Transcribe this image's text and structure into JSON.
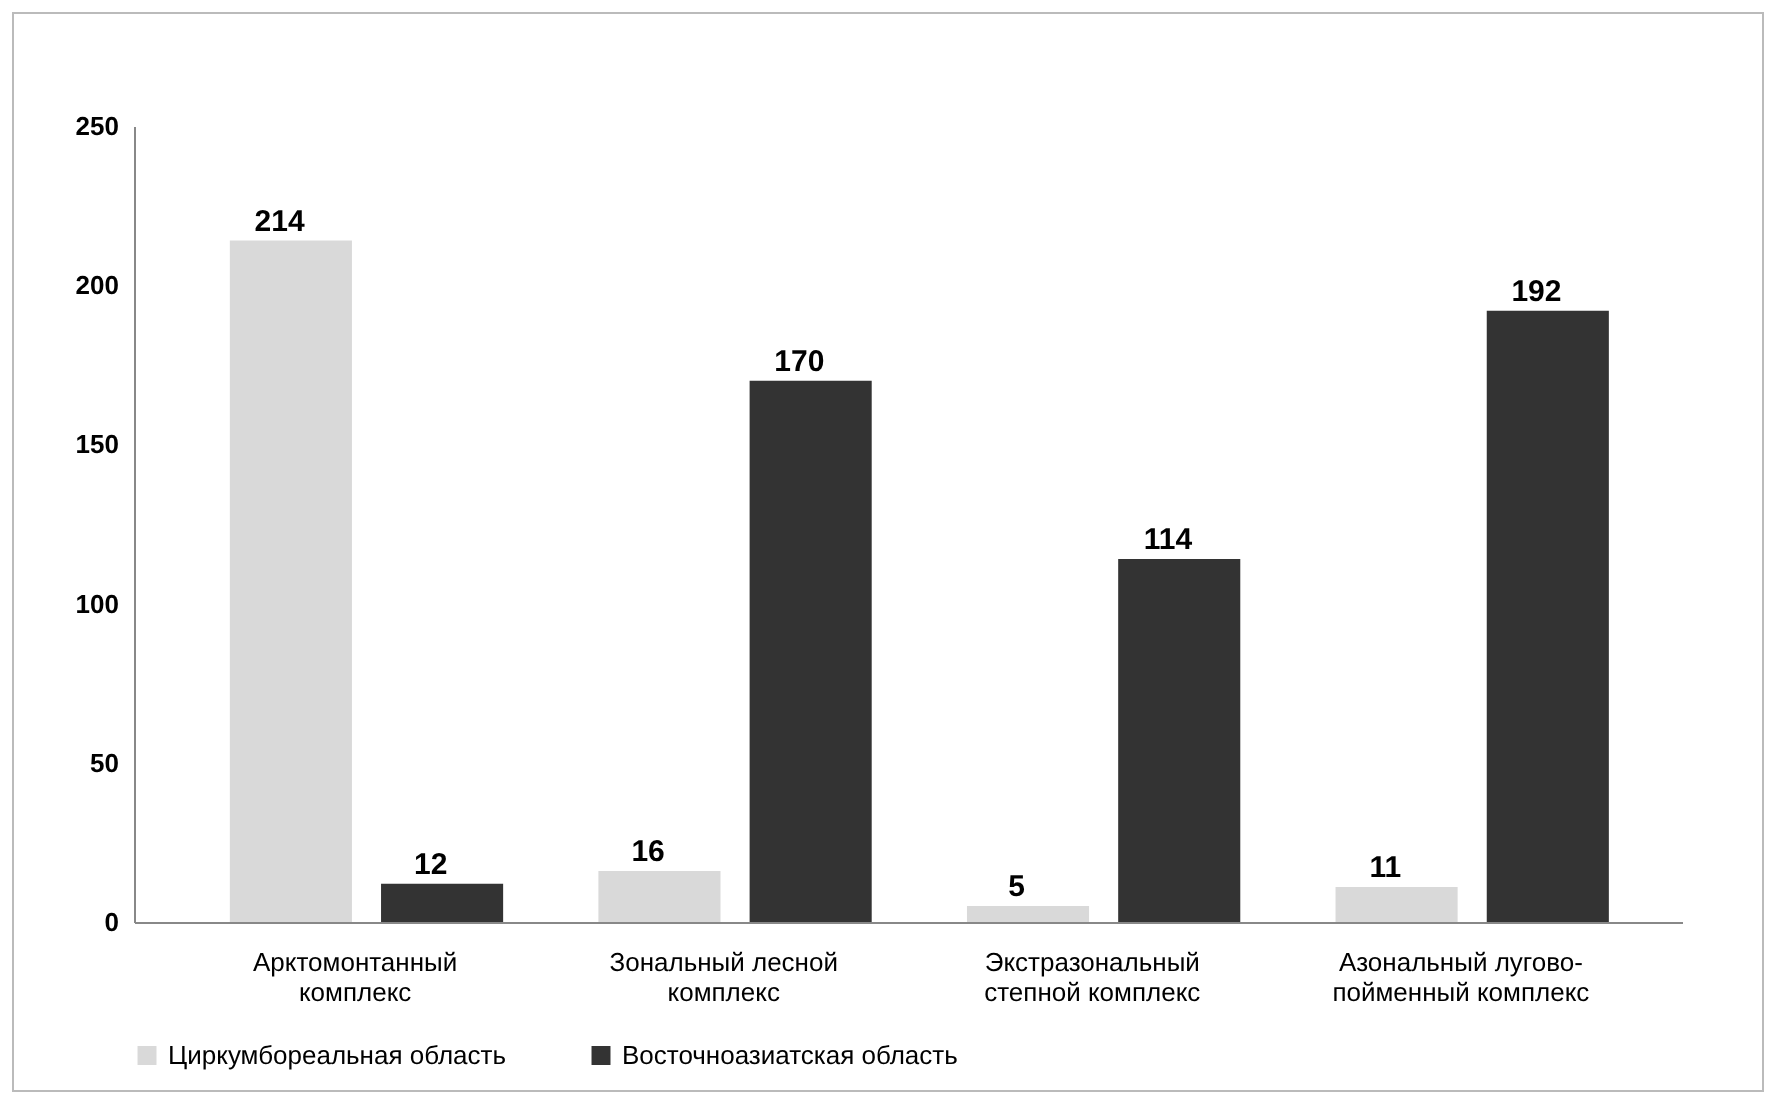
{
  "chart_data": {
    "type": "bar",
    "categories": [
      "Арктомонтанный комплекс",
      "Зональный лесной комплекс",
      "Экстразональный степной комплекс",
      "Азональный лугово-пойменный комплекс"
    ],
    "series": [
      {
        "name": "Циркумбореальная область",
        "color": "#d9d9d9",
        "values": [
          214,
          16,
          5,
          11
        ]
      },
      {
        "name": "Восточноазиатская область",
        "color": "#333333",
        "values": [
          12,
          170,
          114,
          192
        ]
      }
    ],
    "ylim": [
      0,
      250
    ],
    "yticks": [
      0,
      50,
      100,
      150,
      200,
      250
    ],
    "grid": false,
    "legend": "bottom",
    "data_labels": true
  }
}
